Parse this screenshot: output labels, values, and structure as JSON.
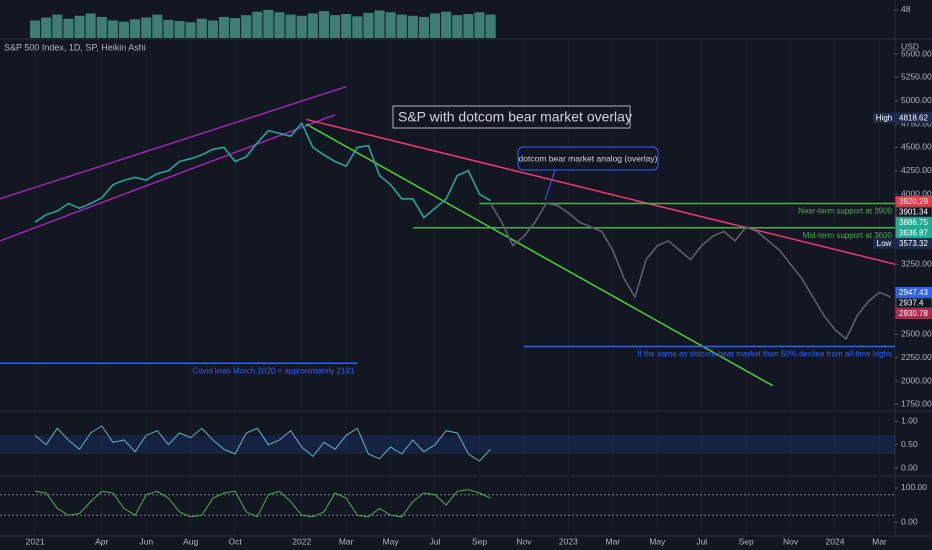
{
  "header": {
    "legend": "S&P 500 Index, 1D, SP, Heikin Ashi",
    "currency": "USD"
  },
  "chart_data": [
    {
      "type": "bar",
      "color": "#3f7f72",
      "x": [
        0,
        0.5,
        1,
        1.5,
        2,
        2.5,
        3,
        3.5,
        4,
        4.5,
        5,
        5.5,
        6,
        6.5,
        7,
        7.5,
        8,
        8.5,
        9,
        9.5,
        10,
        10.5,
        11,
        11.5,
        12,
        12.5,
        13,
        13.5,
        14,
        14.5,
        15,
        15.5,
        16,
        16.5,
        17,
        17.5,
        18,
        18.5,
        19,
        19.5,
        20,
        20.5
      ],
      "values": [
        30,
        35,
        40,
        33,
        38,
        42,
        36,
        30,
        28,
        32,
        35,
        40,
        31,
        29,
        27,
        33,
        30,
        36,
        34,
        39,
        45,
        48,
        44,
        40,
        38,
        42,
        46,
        39,
        41,
        37,
        43,
        47,
        44,
        40,
        38,
        36,
        42,
        45,
        39,
        41,
        44,
        40
      ],
      "ylim": [
        0,
        65
      ],
      "yticks": [
        48
      ]
    },
    {
      "type": "line",
      "xlim": [
        -1.58,
        38.7
      ],
      "xticks": [
        {
          "value": 0,
          "label": "2021"
        },
        {
          "value": 3,
          "label": "Apr"
        },
        {
          "value": 5,
          "label": "Jun"
        },
        {
          "value": 7,
          "label": "Aug"
        },
        {
          "value": 9,
          "label": "Oct"
        },
        {
          "value": 12,
          "label": "2022"
        },
        {
          "value": 14,
          "label": "Mar"
        },
        {
          "value": 16,
          "label": "May"
        },
        {
          "value": 18,
          "label": "Jul"
        },
        {
          "value": 20,
          "label": "Sep"
        },
        {
          "value": 22,
          "label": "Nov"
        },
        {
          "value": 24,
          "label": "2023"
        },
        {
          "value": 26,
          "label": "Mar"
        },
        {
          "value": 28,
          "label": "May"
        },
        {
          "value": 30,
          "label": "Jul"
        },
        {
          "value": 32,
          "label": "Sep"
        },
        {
          "value": 34,
          "label": "Nov"
        },
        {
          "value": 36,
          "label": "2024"
        },
        {
          "value": 38,
          "label": "Mar"
        }
      ],
      "ylim": [
        1690,
        5650
      ],
      "yticks": [
        {
          "value": 5500,
          "label": "5500.00"
        },
        {
          "value": 5250,
          "label": "5250.00"
        },
        {
          "value": 5000,
          "label": "5000.00"
        },
        {
          "value": 4750,
          "label": "4750.00"
        },
        {
          "value": 4500,
          "label": "4500.00"
        },
        {
          "value": 4250,
          "label": "4250.00"
        },
        {
          "value": 4000,
          "label": "4000.00"
        },
        {
          "value": 3250,
          "label": "3250.00"
        },
        {
          "value": 2500,
          "label": "2500.00"
        },
        {
          "value": 2250,
          "label": "2250.00"
        },
        {
          "value": 2000,
          "label": "2000.00"
        },
        {
          "value": 1750,
          "label": "1750.00"
        }
      ],
      "series": [
        {
          "color": "#26a69a",
          "x": [
            0,
            0.5,
            1,
            1.5,
            2,
            2.5,
            3,
            3.5,
            4,
            4.5,
            5,
            5.5,
            6,
            6.5,
            7,
            7.5,
            8,
            8.5,
            9,
            9.5,
            10,
            10.5,
            11,
            11.5,
            12,
            12.5,
            13,
            13.5,
            14,
            14.5,
            15,
            15.5,
            16,
            16.5,
            17,
            17.5,
            18,
            18.5,
            19,
            19.5,
            20,
            20.5
          ],
          "values": [
            3700,
            3780,
            3820,
            3900,
            3850,
            3900,
            3960,
            4100,
            4150,
            4180,
            4150,
            4220,
            4250,
            4350,
            4380,
            4420,
            4480,
            4500,
            4350,
            4400,
            4550,
            4680,
            4650,
            4620,
            4760,
            4500,
            4420,
            4350,
            4300,
            4500,
            4520,
            4200,
            4100,
            3950,
            3950,
            3750,
            3850,
            3950,
            4200,
            4250,
            4000,
            3930
          ]
        },
        {
          "color": "#5d606b",
          "x": [
            20.5,
            21,
            21.5,
            22,
            22.5,
            23,
            23.5,
            24,
            24.5,
            25,
            25.5,
            26,
            26.5,
            27,
            27.5,
            28,
            28.5,
            29,
            29.5,
            30,
            30.5,
            31,
            31.5,
            32,
            32.5,
            33,
            33.5,
            34,
            34.5,
            35,
            35.5,
            36,
            36.5,
            37,
            37.5,
            38,
            38.5
          ],
          "values": [
            3900,
            3700,
            3450,
            3550,
            3700,
            3900,
            3880,
            3800,
            3700,
            3650,
            3600,
            3400,
            3100,
            2900,
            3300,
            3450,
            3500,
            3400,
            3300,
            3450,
            3550,
            3600,
            3500,
            3650,
            3600,
            3500,
            3400,
            3250,
            3100,
            2900,
            2700,
            2550,
            2450,
            2700,
            2850,
            2950,
            2900
          ]
        }
      ],
      "lines": [
        {
          "x": [
            -1.58,
            13.5
          ],
          "y": [
            3500,
            4850
          ],
          "color": "#9c27b0"
        },
        {
          "x": [
            -1.58,
            14
          ],
          "y": [
            3950,
            5150
          ],
          "color": "#9c27b0"
        },
        {
          "x": [
            12.2,
            38.7
          ],
          "y": [
            4800,
            3250
          ],
          "color": "#f23670"
        },
        {
          "x": [
            12.2,
            33.2
          ],
          "y": [
            4750,
            1950
          ],
          "color": "#4cd137"
        },
        {
          "x": [
            20,
            38.7
          ],
          "y": [
            3900,
            3900
          ],
          "color": "#4caf50",
          "text": "Near-term support at 3900"
        },
        {
          "x": [
            17,
            38.7
          ],
          "y": [
            3640,
            3640
          ],
          "color": "#4caf50",
          "text": "Mid-term support at 3600"
        },
        {
          "x": [
            22,
            38.7
          ],
          "y": [
            2370,
            2370
          ],
          "color": "#2962ff",
          "text": "If the same as dotcom bear market then 50% decline from all-time highs"
        },
        {
          "x": [
            -1.58,
            14.5
          ],
          "y": [
            2191,
            2191
          ],
          "color": "#2962ff",
          "text": "Covid lows March 2020 = approximately 2191"
        }
      ],
      "annotations": [
        "S&P with dotcom bear market overlay",
        "dotcom bear market analog (overlay)"
      ],
      "price_labels": [
        {
          "label": "High",
          "value": 4818.62,
          "color": "#1e2a4a"
        },
        {
          "value": 3920.29,
          "color": "#f23645"
        },
        {
          "value": 3901.34,
          "color": "#131722"
        },
        {
          "value": 3886.75,
          "color": "#22ab94"
        },
        {
          "value": 3636.87,
          "color": "#22ab94"
        },
        {
          "label": "Low",
          "value": 3573.32,
          "color": "#1e2a4a"
        },
        {
          "value": 2947.43,
          "color": "#2962ff"
        },
        {
          "value": 2937.4,
          "color": "#131722"
        },
        {
          "value": 2930.78,
          "color": "#b0264f"
        }
      ]
    },
    {
      "type": "line",
      "ylim": [
        -0.15,
        1.2
      ],
      "band": [
        0.3,
        0.7
      ],
      "yticks": [
        {
          "value": 1,
          "label": "1.00"
        },
        {
          "value": 0.5,
          "label": "0.50"
        },
        {
          "value": 0,
          "label": "0.00"
        }
      ],
      "series": [
        {
          "color": "#5fb3c8",
          "x": [
            0,
            0.5,
            1,
            1.5,
            2,
            2.5,
            3,
            3.5,
            4,
            4.5,
            5,
            5.5,
            6,
            6.5,
            7,
            7.5,
            8,
            8.5,
            9,
            9.5,
            10,
            10.5,
            11,
            11.5,
            12,
            12.5,
            13,
            13.5,
            14,
            14.5,
            15,
            15.5,
            16,
            16.5,
            17,
            17.5,
            18,
            18.5,
            19,
            19.5,
            20,
            20.5
          ],
          "values": [
            0.7,
            0.5,
            0.85,
            0.6,
            0.4,
            0.75,
            0.9,
            0.55,
            0.6,
            0.35,
            0.7,
            0.8,
            0.5,
            0.75,
            0.65,
            0.85,
            0.6,
            0.4,
            0.3,
            0.75,
            0.85,
            0.5,
            0.6,
            0.8,
            0.45,
            0.25,
            0.55,
            0.4,
            0.7,
            0.85,
            0.3,
            0.2,
            0.45,
            0.3,
            0.6,
            0.35,
            0.5,
            0.8,
            0.75,
            0.3,
            0.15,
            0.4
          ]
        }
      ]
    },
    {
      "type": "line",
      "ylim": [
        -38,
        132
      ],
      "levels": [
        80,
        20
      ],
      "yticks": [
        {
          "value": 100,
          "label": "100.00"
        },
        {
          "value": 0,
          "label": "0.00"
        }
      ],
      "series": [
        {
          "color": "#4caf50",
          "x": [
            0,
            0.5,
            1,
            1.5,
            2,
            2.5,
            3,
            3.5,
            4,
            4.5,
            5,
            5.5,
            6,
            6.5,
            7,
            7.5,
            8,
            8.5,
            9,
            9.5,
            10,
            10.5,
            11,
            11.5,
            12,
            12.5,
            13,
            13.5,
            14,
            14.5,
            15,
            15.5,
            16,
            16.5,
            17,
            17.5,
            18,
            18.5,
            19,
            19.5,
            20,
            20.5
          ],
          "values": [
            90,
            85,
            40,
            20,
            25,
            60,
            90,
            85,
            40,
            20,
            80,
            90,
            70,
            30,
            15,
            20,
            70,
            85,
            90,
            30,
            15,
            80,
            90,
            60,
            20,
            15,
            30,
            85,
            70,
            20,
            15,
            40,
            20,
            15,
            60,
            85,
            80,
            50,
            90,
            95,
            85,
            70
          ]
        }
      ]
    }
  ]
}
